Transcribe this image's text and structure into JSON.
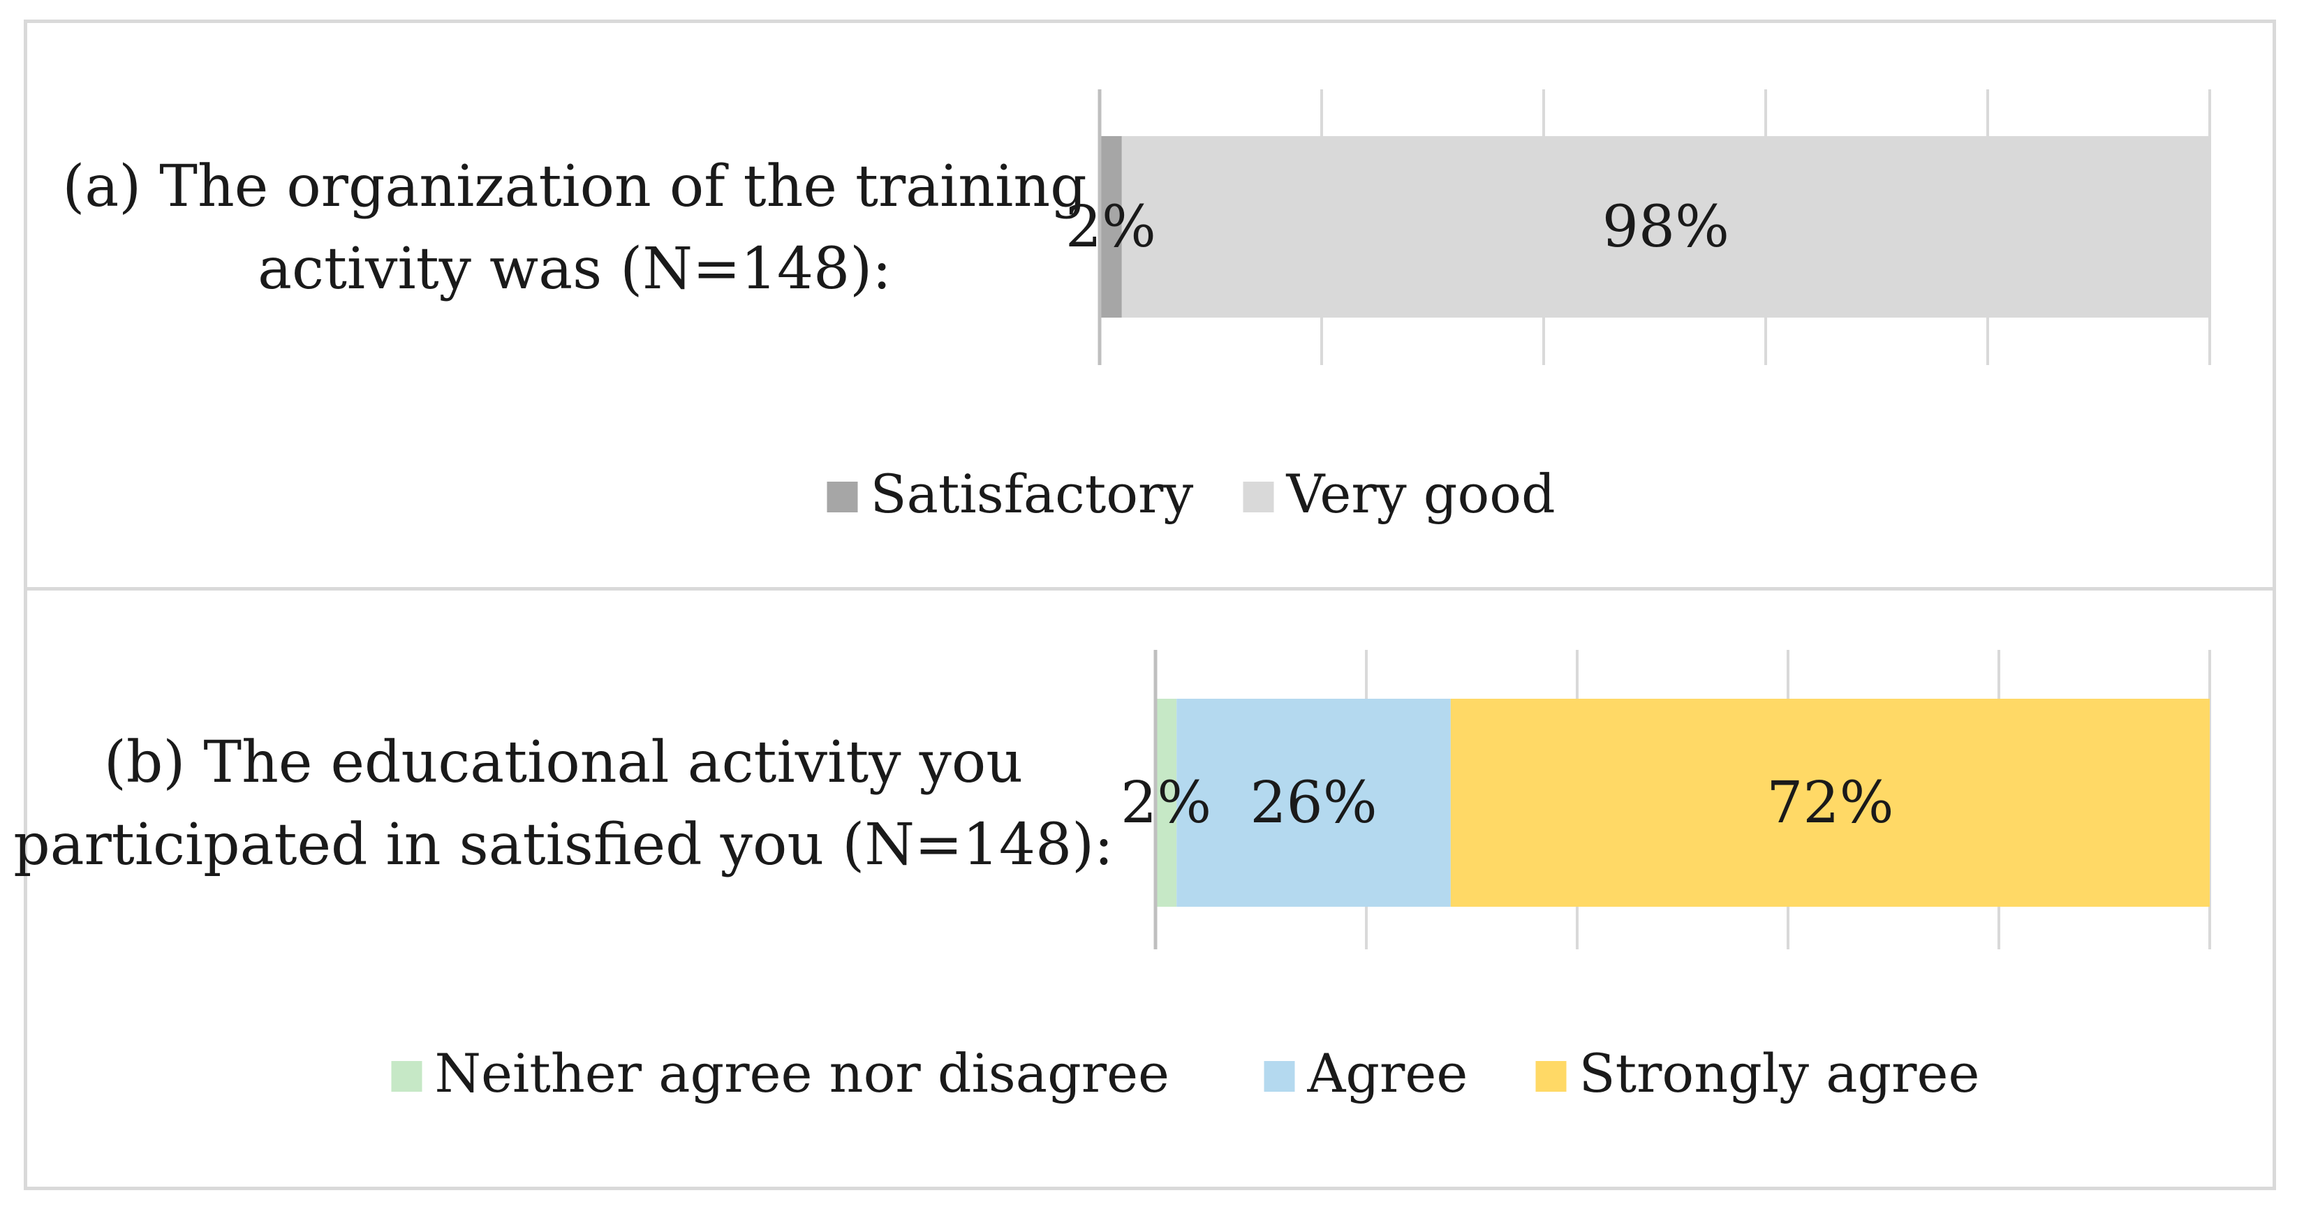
{
  "chart_data": [
    {
      "type": "bar",
      "orientation": "horizontal",
      "stacked": true,
      "category": "(a) The organization of the training activity was (N=148):",
      "category_lines": [
        "(a) The organization of the training",
        "activity was (N=148):"
      ],
      "xlim": [
        0,
        100
      ],
      "grid": true,
      "legend_position": "bottom",
      "series": [
        {
          "name": "Satisfactory",
          "value": 2,
          "label": "2%",
          "color": "#a6a6a6"
        },
        {
          "name": "Very good",
          "value": 98,
          "label": "98%",
          "color": "#d9d9d9"
        }
      ]
    },
    {
      "type": "bar",
      "orientation": "horizontal",
      "stacked": true,
      "category": "(b) The educational activity you participated in satisfied you (N=148):",
      "category_lines": [
        "(b) The educational activity you",
        "participated in satisfied you (N=148):"
      ],
      "xlim": [
        0,
        100
      ],
      "grid": true,
      "legend_position": "bottom",
      "series": [
        {
          "name": "Neither agree nor disagree",
          "value": 2,
          "label": "2%",
          "color": "#c6e8c6"
        },
        {
          "name": "Agree",
          "value": 26,
          "label": "26%",
          "color": "#b4d9ef"
        },
        {
          "name": "Strongly agree",
          "value": 72,
          "label": "72%",
          "color": "#ffd966"
        }
      ]
    }
  ]
}
